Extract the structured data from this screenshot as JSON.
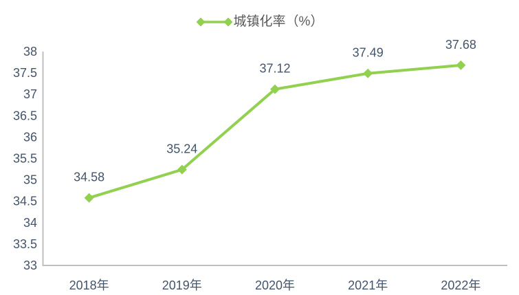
{
  "chart_data": {
    "type": "line",
    "title": "城镇化率（%）",
    "legend": {
      "label": "城镇化率（%）",
      "position": "top-center"
    },
    "categories": [
      "2018年",
      "2019年",
      "2020年",
      "2021年",
      "2022年"
    ],
    "series": [
      {
        "name": "城镇化率（%）",
        "values": [
          34.58,
          35.24,
          37.12,
          37.49,
          37.68
        ]
      }
    ],
    "data_labels": [
      "34.58",
      "35.24",
      "37.12",
      "37.49",
      "37.68"
    ],
    "y_axis": {
      "min": 33,
      "max": 38,
      "step": 0.5,
      "ticks": [
        "33",
        "33.5",
        "34",
        "34.5",
        "35",
        "35.5",
        "36",
        "36.5",
        "37",
        "37.5",
        "38"
      ]
    },
    "grid": false,
    "marker": "diamond",
    "colors": {
      "series": "#92D050",
      "axis_line": "#BFBFBF",
      "tick_text": "#44546A",
      "data_label_text": "#44546A",
      "legend_text": "#595959",
      "background": "#FFFFFF"
    }
  }
}
